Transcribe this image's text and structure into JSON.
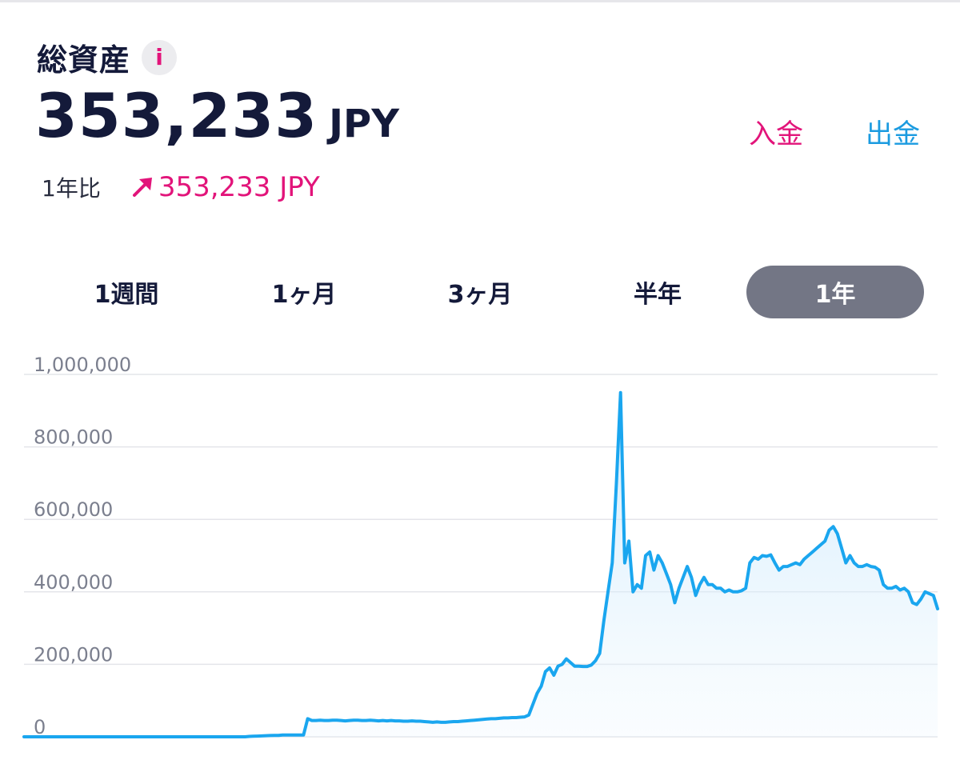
{
  "header": {
    "title": "総資産",
    "info_icon": "i",
    "amount": "353,233",
    "amount_unit": "JPY",
    "deposit_label": "入金",
    "withdraw_label": "出金"
  },
  "change": {
    "label": "1年比",
    "value": "353,233 JPY",
    "direction": "up"
  },
  "tabs": [
    {
      "label": "1週間",
      "active": false
    },
    {
      "label": "1ヶ月",
      "active": false
    },
    {
      "label": "3ヶ月",
      "active": false
    },
    {
      "label": "半年",
      "active": false
    },
    {
      "label": "1年",
      "active": true
    }
  ],
  "colors": {
    "text": "#141a3a",
    "accent_pink": "#e2147a",
    "accent_blue": "#1b9be0",
    "line": "#1aa6ef",
    "tab_active_bg": "#737685",
    "grid": "#e4e5ea"
  },
  "chart_data": {
    "type": "area",
    "title": "",
    "xlabel": "",
    "ylabel": "",
    "ylim": [
      0,
      1000000
    ],
    "y_ticks": [
      "1,000,000",
      "800,000",
      "600,000",
      "400,000",
      "200,000",
      "0"
    ],
    "grid": true,
    "series": [
      {
        "values": [
          0,
          0,
          0,
          0,
          0,
          0,
          0,
          0,
          0,
          0,
          0,
          0,
          0,
          0,
          0,
          0,
          0,
          0,
          0,
          0,
          0,
          0,
          0,
          0,
          0,
          0,
          0,
          0,
          0,
          0,
          0,
          0,
          0,
          0,
          0,
          0,
          0,
          0,
          0,
          0,
          0,
          0,
          0,
          0,
          0,
          0,
          0,
          0,
          0,
          0,
          0,
          0,
          0,
          0,
          1000,
          1500,
          2000,
          2500,
          3000,
          3500,
          4000,
          4000,
          5000,
          5000,
          5000,
          5000,
          5000,
          5000,
          50000,
          45000,
          45000,
          46000,
          45000,
          45000,
          46000,
          46000,
          45000,
          44000,
          45000,
          46000,
          46000,
          45000,
          45000,
          46000,
          45000,
          44000,
          45000,
          44000,
          45000,
          44000,
          44000,
          43000,
          43000,
          44000,
          43000,
          43000,
          42000,
          41000,
          40000,
          41000,
          40000,
          40000,
          41000,
          42000,
          42000,
          43000,
          44000,
          45000,
          46000,
          47000,
          48000,
          49000,
          50000,
          50000,
          51000,
          52000,
          52000,
          53000,
          53000,
          54000,
          55000,
          60000,
          90000,
          120000,
          140000,
          180000,
          190000,
          170000,
          195000,
          200000,
          215000,
          205000,
          195000,
          195000,
          194000,
          194000,
          198000,
          210000,
          230000,
          320000,
          400000,
          480000,
          700000,
          950000,
          480000,
          540000,
          400000,
          420000,
          410000,
          500000,
          510000,
          460000,
          500000,
          480000,
          450000,
          420000,
          370000,
          410000,
          440000,
          470000,
          440000,
          390000,
          420000,
          440000,
          420000,
          420000,
          410000,
          410000,
          400000,
          405000,
          400000,
          400000,
          403000,
          410000,
          480000,
          495000,
          490000,
          500000,
          498000,
          502000,
          480000,
          460000,
          470000,
          470000,
          475000,
          480000,
          475000,
          490000,
          500000,
          510000,
          520000,
          530000,
          540000,
          570000,
          580000,
          560000,
          520000,
          480000,
          500000,
          480000,
          470000,
          470000,
          475000,
          470000,
          468000,
          460000,
          420000,
          410000,
          410000,
          415000,
          405000,
          410000,
          400000,
          370000,
          365000,
          380000,
          400000,
          395000,
          390000,
          353233
        ]
      }
    ]
  }
}
